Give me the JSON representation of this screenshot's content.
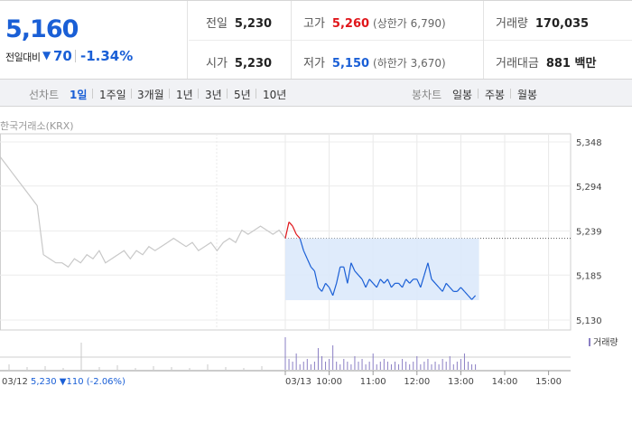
{
  "header": {
    "price": "5,160",
    "change_label": "전일대비",
    "change_arrow": "▼",
    "change_value": "70",
    "change_pct": "-1.34%",
    "stats": {
      "prev_close_label": "전일",
      "prev_close": "5,230",
      "high_label": "고가",
      "high": "5,260",
      "upper_limit": "(상한가 6,790)",
      "volume_label": "거래량",
      "volume": "170,035",
      "open_label": "시가",
      "open": "5,230",
      "low_label": "저가",
      "low": "5,150",
      "lower_limit": "(하한가 3,670)",
      "amount_label": "거래대금",
      "amount": "881 백만"
    }
  },
  "tabs": {
    "line_label": "선차트",
    "line_items": [
      "1일",
      "1주일",
      "3개월",
      "1년",
      "3년",
      "5년",
      "10년"
    ],
    "active": "1일",
    "candle_label": "봉차트",
    "candle_items": [
      "일봉",
      "주봉",
      "월봉"
    ]
  },
  "exchange": "한국거래소(KRX)",
  "legend_volume": "거래량",
  "prev_day": {
    "date": "03/12",
    "summary": "5,230 ▼110 (-2.06%)"
  },
  "colors": {
    "up": "#e0151a",
    "down": "#1a5fd6",
    "prev": "#c8c8c8",
    "fill": "#dce9fb"
  },
  "chart_data": {
    "type": "line",
    "y_ticks": [
      5130,
      5185,
      5239,
      5294,
      5348
    ],
    "y_tick_labels": [
      "5,130",
      "5,185",
      "5,239",
      "5,294",
      "5,348"
    ],
    "ylim": [
      5130,
      5348
    ],
    "reference_price": 5230,
    "x_ticks": [
      "03/13",
      "10:00",
      "11:00",
      "12:00",
      "13:00",
      "14:00",
      "15:00"
    ],
    "series": [
      {
        "x": [
          "09:00",
          "09:05",
          "09:10",
          "09:15",
          "09:20",
          "09:25",
          "09:30",
          "09:35",
          "09:40",
          "09:45",
          "09:50",
          "09:55",
          "10:00",
          "10:05",
          "10:10",
          "10:15",
          "10:20",
          "10:25",
          "10:30",
          "10:35",
          "10:40",
          "10:45",
          "10:50",
          "10:55",
          "11:00",
          "11:05",
          "11:10",
          "11:15",
          "11:20",
          "11:25",
          "11:30",
          "11:35",
          "11:40",
          "11:45",
          "11:50",
          "11:55",
          "12:00",
          "12:05",
          "12:10",
          "12:15",
          "12:20",
          "12:25",
          "12:30",
          "12:35",
          "12:40",
          "12:45",
          "12:50",
          "12:55",
          "13:00",
          "13:05",
          "13:10",
          "13:15",
          "13:20"
        ],
        "values": [
          5230,
          5250,
          5245,
          5235,
          5230,
          5215,
          5205,
          5195,
          5190,
          5170,
          5165,
          5175,
          5170,
          5160,
          5175,
          5195,
          5195,
          5175,
          5200,
          5190,
          5185,
          5180,
          5170,
          5180,
          5175,
          5170,
          5180,
          5175,
          5180,
          5170,
          5175,
          5175,
          5170,
          5180,
          5175,
          5180,
          5180,
          5170,
          5185,
          5200,
          5180,
          5175,
          5170,
          5165,
          5175,
          5170,
          5165,
          5165,
          5170,
          5165,
          5160,
          5155,
          5160
        ]
      }
    ],
    "prev_day_series": [
      {
        "values": [
          5330,
          5320,
          5310,
          5300,
          5290,
          5280,
          5270,
          5210,
          5205,
          5200,
          5200,
          5195,
          5205,
          5200,
          5210,
          5205,
          5215,
          5200,
          5205,
          5210,
          5215,
          5205,
          5215,
          5210,
          5220,
          5215,
          5220,
          5225,
          5230,
          5225,
          5220,
          5225,
          5215,
          5220,
          5225,
          5215,
          5225,
          5230,
          5225,
          5240,
          5235,
          5240,
          5245,
          5240,
          5235,
          5240,
          5230
        ]
      }
    ],
    "volume": {
      "values": [
        12,
        4,
        3,
        6,
        2,
        3,
        4,
        2,
        3,
        8,
        5,
        3,
        4,
        9,
        3,
        2,
        4,
        3,
        2,
        5,
        3,
        4,
        2,
        3,
        6,
        2,
        3,
        4,
        3,
        2,
        3,
        2,
        4,
        3,
        2,
        3,
        5,
        2,
        3,
        4,
        2,
        3,
        2,
        4,
        3,
        5,
        2,
        3,
        4,
        6,
        3,
        2,
        2
      ]
    }
  }
}
